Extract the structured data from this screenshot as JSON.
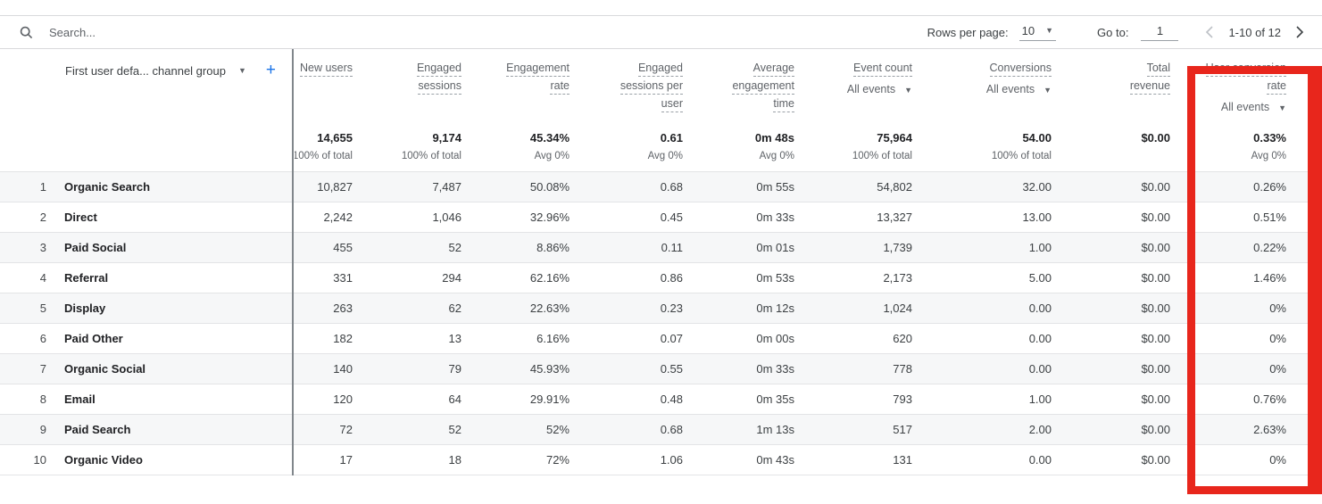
{
  "toolbar": {
    "search_placeholder": "Search...",
    "rows_per_page_label": "Rows per page:",
    "rows_per_page_value": "10",
    "goto_label": "Go to:",
    "goto_value": "1",
    "page_range": "1-10 of 12"
  },
  "table": {
    "dimension_header": "First user defa... channel group",
    "columns": [
      {
        "id": "new-users",
        "lines": [
          "New users"
        ],
        "total": "14,655",
        "total_sub": "100% of total"
      },
      {
        "id": "engaged-sessions",
        "lines": [
          "Engaged",
          "sessions"
        ],
        "total": "9,174",
        "total_sub": "100% of total"
      },
      {
        "id": "engagement-rate",
        "lines": [
          "Engagement",
          "rate"
        ],
        "total": "45.34%",
        "total_sub": "Avg 0%"
      },
      {
        "id": "engaged-sessions-per-user",
        "lines": [
          "Engaged",
          "sessions per",
          "user"
        ],
        "total": "0.61",
        "total_sub": "Avg 0%"
      },
      {
        "id": "average-engagement-time",
        "lines": [
          "Average",
          "engagement",
          "time"
        ],
        "total": "0m 48s",
        "total_sub": "Avg 0%"
      },
      {
        "id": "event-count",
        "lines": [
          "Event count"
        ],
        "filter": "All events",
        "total": "75,964",
        "total_sub": "100% of total"
      },
      {
        "id": "conversions",
        "lines": [
          "Conversions"
        ],
        "filter": "All events",
        "total": "54.00",
        "total_sub": "100% of total"
      },
      {
        "id": "total-revenue",
        "lines": [
          "Total",
          "revenue"
        ],
        "total": "$0.00",
        "total_sub": ""
      },
      {
        "id": "user-conversion-rate",
        "lines": [
          "User conversion",
          "rate"
        ],
        "filter": "All events",
        "total": "0.33%",
        "total_sub": "Avg 0%"
      }
    ],
    "rows": [
      {
        "num": "1",
        "name": "Organic Search",
        "values": [
          "10,827",
          "7,487",
          "50.08%",
          "0.68",
          "0m 55s",
          "54,802",
          "32.00",
          "$0.00",
          "0.26%"
        ]
      },
      {
        "num": "2",
        "name": "Direct",
        "values": [
          "2,242",
          "1,046",
          "32.96%",
          "0.45",
          "0m 33s",
          "13,327",
          "13.00",
          "$0.00",
          "0.51%"
        ]
      },
      {
        "num": "3",
        "name": "Paid Social",
        "values": [
          "455",
          "52",
          "8.86%",
          "0.11",
          "0m 01s",
          "1,739",
          "1.00",
          "$0.00",
          "0.22%"
        ]
      },
      {
        "num": "4",
        "name": "Referral",
        "values": [
          "331",
          "294",
          "62.16%",
          "0.86",
          "0m 53s",
          "2,173",
          "5.00",
          "$0.00",
          "1.46%"
        ]
      },
      {
        "num": "5",
        "name": "Display",
        "values": [
          "263",
          "62",
          "22.63%",
          "0.23",
          "0m 12s",
          "1,024",
          "0.00",
          "$0.00",
          "0%"
        ]
      },
      {
        "num": "6",
        "name": "Paid Other",
        "values": [
          "182",
          "13",
          "6.16%",
          "0.07",
          "0m 00s",
          "620",
          "0.00",
          "$0.00",
          "0%"
        ]
      },
      {
        "num": "7",
        "name": "Organic Social",
        "values": [
          "140",
          "79",
          "45.93%",
          "0.55",
          "0m 33s",
          "778",
          "0.00",
          "$0.00",
          "0%"
        ]
      },
      {
        "num": "8",
        "name": "Email",
        "values": [
          "120",
          "64",
          "29.91%",
          "0.48",
          "0m 35s",
          "793",
          "1.00",
          "$0.00",
          "0.76%"
        ]
      },
      {
        "num": "9",
        "name": "Paid Search",
        "values": [
          "72",
          "52",
          "52%",
          "0.68",
          "1m 13s",
          "517",
          "2.00",
          "$0.00",
          "2.63%"
        ]
      },
      {
        "num": "10",
        "name": "Organic Video",
        "values": [
          "17",
          "18",
          "72%",
          "1.06",
          "0m 43s",
          "131",
          "0.00",
          "$0.00",
          "0%"
        ]
      }
    ]
  },
  "icons": {
    "search": "search-icon",
    "dropdown_caret": "chevron-down-icon",
    "add_metric": "plus-icon",
    "prev_page": "chevron-left-icon",
    "next_page": "chevron-right-icon"
  },
  "colors": {
    "accent_blue": "#1a73e8",
    "header_text": "#5f6368",
    "value_text": "#3c4043",
    "annotation_red": "#e8261c",
    "row_shade": "#f6f7f8"
  }
}
